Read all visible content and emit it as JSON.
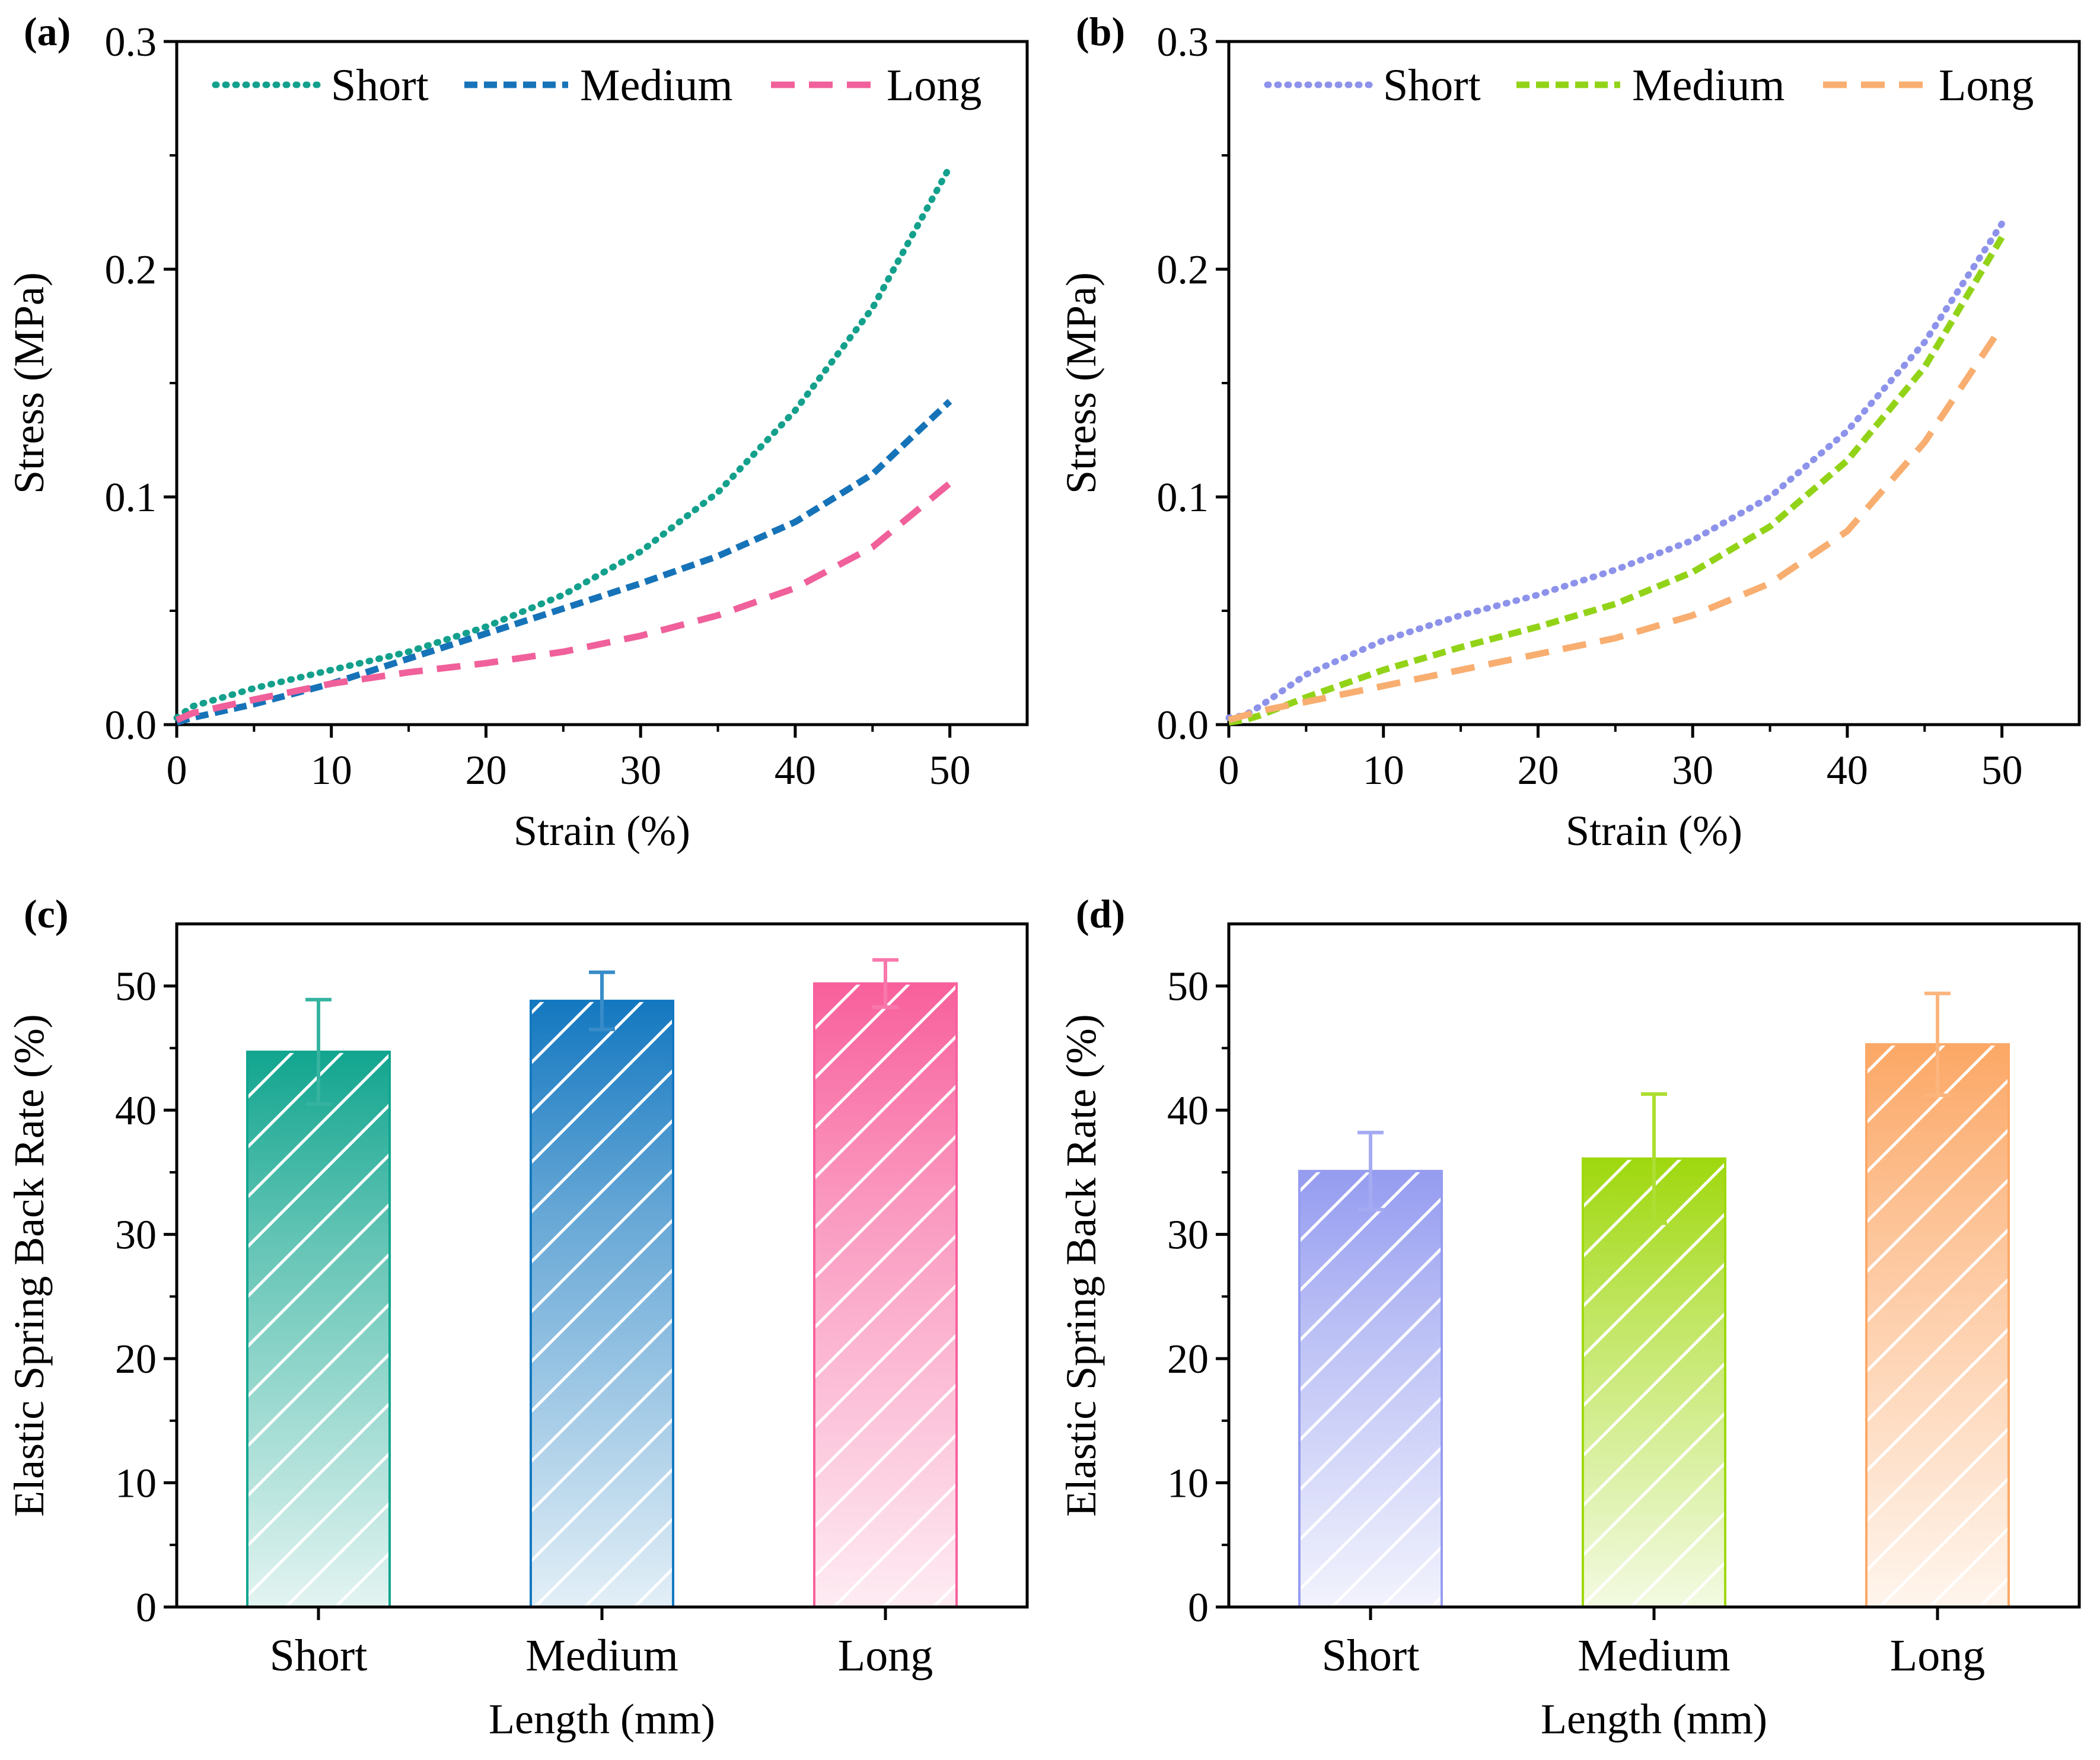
{
  "chart_data": [
    {
      "id": "a",
      "panel_label": "(a)",
      "type": "line",
      "xlabel": "Strain (%)",
      "ylabel": "Stress (MPa)",
      "xlim": [
        0,
        55
      ],
      "ylim": [
        0,
        0.3
      ],
      "xticks": [
        "0",
        "10",
        "20",
        "30",
        "40",
        "50"
      ],
      "yticks": [
        "0.0",
        "0.1",
        "0.2",
        "0.3"
      ],
      "legend_position": "top",
      "series": [
        {
          "name": "Short",
          "color": "#13a08c",
          "style": "dotted",
          "x": [
            0,
            1,
            5,
            10,
            15,
            20,
            25,
            30,
            35,
            40,
            45,
            50
          ],
          "y": [
            0.003,
            0.008,
            0.016,
            0.024,
            0.032,
            0.043,
            0.057,
            0.076,
            0.102,
            0.138,
            0.183,
            0.245
          ]
        },
        {
          "name": "Medium",
          "color": "#1673b8",
          "style": "dashed",
          "x": [
            0,
            1,
            5,
            10,
            15,
            20,
            25,
            30,
            35,
            40,
            45,
            50
          ],
          "y": [
            0.001,
            0.003,
            0.009,
            0.018,
            0.029,
            0.04,
            0.051,
            0.062,
            0.074,
            0.089,
            0.11,
            0.142
          ]
        },
        {
          "name": "Long",
          "color": "#f0609a",
          "style": "long-dashed",
          "x": [
            0,
            1,
            5,
            10,
            15,
            20,
            25,
            30,
            35,
            40,
            45,
            50
          ],
          "y": [
            0.002,
            0.005,
            0.011,
            0.018,
            0.023,
            0.027,
            0.032,
            0.039,
            0.048,
            0.06,
            0.078,
            0.106
          ]
        }
      ]
    },
    {
      "id": "b",
      "panel_label": "(b)",
      "type": "line",
      "xlabel": "Strain (%)",
      "ylabel": "Stress (MPa)",
      "xlim": [
        0,
        55
      ],
      "ylim": [
        0,
        0.3
      ],
      "xticks": [
        "0",
        "10",
        "20",
        "30",
        "40",
        "50"
      ],
      "yticks": [
        "0.0",
        "0.1",
        "0.2",
        "0.3"
      ],
      "legend_position": "top",
      "series": [
        {
          "name": "Short",
          "color": "#8d93ea",
          "style": "dotted",
          "x": [
            0,
            1,
            2,
            5,
            10,
            15,
            20,
            25,
            30,
            35,
            40,
            45,
            50
          ],
          "y": [
            0.003,
            0.004,
            0.008,
            0.022,
            0.037,
            0.048,
            0.057,
            0.068,
            0.081,
            0.1,
            0.129,
            0.168,
            0.22
          ]
        },
        {
          "name": "Medium",
          "color": "#92d318",
          "style": "dashed",
          "x": [
            0,
            1,
            2,
            5,
            10,
            15,
            20,
            25,
            30,
            35,
            40,
            45,
            50
          ],
          "y": [
            0.001,
            0.002,
            0.004,
            0.012,
            0.024,
            0.034,
            0.043,
            0.053,
            0.067,
            0.087,
            0.116,
            0.157,
            0.214
          ]
        },
        {
          "name": "Long",
          "color": "#f8ae70",
          "style": "long-dashed",
          "x": [
            0,
            1,
            2,
            5,
            10,
            15,
            20,
            25,
            30,
            35,
            40,
            45,
            50
          ],
          "y": [
            0.002,
            0.004,
            0.006,
            0.01,
            0.017,
            0.024,
            0.031,
            0.038,
            0.048,
            0.062,
            0.085,
            0.124,
            0.175
          ]
        }
      ]
    },
    {
      "id": "c",
      "panel_label": "(c)",
      "type": "bar",
      "xlabel": "Length (mm)",
      "ylabel": "Elastic Spring Back Rate (%)",
      "ylim": [
        0,
        55
      ],
      "yticks": [
        "0",
        "10",
        "20",
        "30",
        "40",
        "50"
      ],
      "categories": [
        "Short",
        "Medium",
        "Long"
      ],
      "values": [
        44.7,
        48.8,
        50.2
      ],
      "errors": [
        4.2,
        2.3,
        1.9
      ],
      "colors": [
        "#12a58f",
        "#1478c0",
        "#f8609c"
      ],
      "pattern": "diagonal-hatch"
    },
    {
      "id": "d",
      "panel_label": "(d)",
      "type": "bar",
      "xlabel": "Length (mm)",
      "ylabel": "Elastic Spring Back Rate (%)",
      "ylim": [
        0,
        55
      ],
      "yticks": [
        "0",
        "10",
        "20",
        "30",
        "40",
        "50"
      ],
      "categories": [
        "Short",
        "Medium",
        "Long"
      ],
      "values": [
        35.1,
        36.1,
        45.3
      ],
      "errors": [
        3.1,
        5.2,
        4.1
      ],
      "colors": [
        "#959cf0",
        "#9fd80e",
        "#fca866"
      ],
      "pattern": "diagonal-hatch"
    }
  ]
}
